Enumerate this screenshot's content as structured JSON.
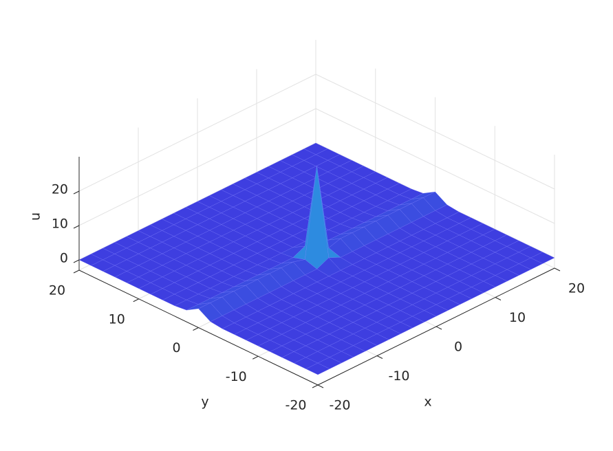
{
  "chart_data": {
    "type": "surface",
    "colormap": "parula",
    "grid": true,
    "xlabel": "x",
    "ylabel": "y",
    "zlabel": "u",
    "xlim": [
      -20,
      20
    ],
    "ylim": [
      -20,
      20
    ],
    "zlim": [
      -3,
      30
    ],
    "xticks": [
      -20,
      -10,
      0,
      10,
      20
    ],
    "yticks": [
      -20,
      -10,
      0,
      10,
      20
    ],
    "zticks": [
      0,
      10,
      20
    ],
    "x": [
      -20,
      -18,
      -16,
      -14,
      -12,
      -10,
      -8,
      -6,
      -4,
      -2,
      0,
      2,
      4,
      6,
      8,
      10,
      12,
      14,
      16,
      18,
      20
    ],
    "y": [
      -20,
      -18,
      -16,
      -14,
      -12,
      -10,
      -8,
      -6,
      -4,
      -2,
      0,
      2,
      4,
      6,
      8,
      10,
      12,
      14,
      16,
      18,
      20
    ],
    "z": [
      [
        0,
        0,
        0,
        0,
        0,
        0,
        0,
        0,
        0,
        0,
        0,
        0,
        0,
        0,
        0,
        0,
        0,
        0,
        0,
        0,
        0
      ],
      [
        0,
        0,
        0,
        0,
        0,
        0,
        0,
        0,
        0,
        0,
        0,
        0,
        0,
        0,
        0,
        0,
        0,
        0,
        0,
        0,
        0
      ],
      [
        0,
        0,
        0,
        0,
        0,
        0,
        0,
        0,
        0,
        0,
        0,
        0,
        0,
        0,
        0,
        0,
        0,
        0,
        0,
        0,
        0
      ],
      [
        0,
        0,
        0,
        0,
        0,
        0,
        0,
        0,
        0,
        0,
        0,
        0,
        0,
        0,
        0,
        0,
        0,
        0,
        0,
        0,
        0
      ],
      [
        0,
        0,
        0,
        0,
        0,
        0,
        0,
        0,
        0,
        0,
        0,
        0,
        0,
        0,
        0,
        0,
        0,
        0,
        0,
        0,
        0
      ],
      [
        0,
        0,
        0,
        0,
        0,
        0,
        0,
        0,
        0,
        0,
        0,
        0,
        0,
        0,
        0,
        0,
        0,
        0,
        0,
        0,
        0
      ],
      [
        0,
        0,
        0,
        0,
        0,
        0,
        0,
        0,
        0,
        0,
        0,
        0,
        0,
        0,
        0,
        0,
        0,
        0,
        0,
        0,
        0
      ],
      [
        0,
        0,
        0,
        0,
        0,
        0,
        0,
        0,
        0,
        0,
        0,
        0,
        0,
        0,
        0,
        0,
        0,
        0,
        0,
        0,
        0
      ],
      [
        0,
        0,
        0,
        0,
        0,
        0,
        0,
        0,
        0,
        0,
        0,
        0,
        0,
        0,
        0,
        0,
        0,
        0,
        0,
        0,
        0
      ],
      [
        0.4,
        0.4,
        0.4,
        0.4,
        0.4,
        0.4,
        0.4,
        0.4,
        0.4,
        0.4,
        2,
        0.4,
        0.4,
        0.4,
        0.4,
        0.4,
        0.4,
        0.4,
        0.4,
        0.4,
        0.4
      ],
      [
        2.5,
        2.5,
        2.5,
        2.5,
        2.5,
        2.5,
        2.5,
        2.5,
        2.5,
        1.5,
        27,
        1.5,
        2.5,
        2.5,
        2.5,
        2.5,
        2.5,
        2.5,
        2.5,
        2.5,
        2.5
      ],
      [
        0.4,
        0.4,
        0.4,
        0.4,
        0.4,
        0.4,
        0.4,
        0.4,
        0.4,
        0.4,
        2,
        0.4,
        0.4,
        0.4,
        0.4,
        0.4,
        0.4,
        0.4,
        0.4,
        0.4,
        0.4
      ],
      [
        0,
        0,
        0,
        0,
        0,
        0,
        0,
        0,
        0,
        0,
        0,
        0,
        0,
        0,
        0,
        0,
        0,
        0,
        0,
        0,
        0
      ],
      [
        0,
        0,
        0,
        0,
        0,
        0,
        0,
        0,
        0,
        0,
        0,
        0,
        0,
        0,
        0,
        0,
        0,
        0,
        0,
        0,
        0
      ],
      [
        0,
        0,
        0,
        0,
        0,
        0,
        0,
        0,
        0,
        0,
        0,
        0,
        0,
        0,
        0,
        0,
        0,
        0,
        0,
        0,
        0
      ],
      [
        0,
        0,
        0,
        0,
        0,
        0,
        0,
        0,
        0,
        0,
        0,
        0,
        0,
        0,
        0,
        0,
        0,
        0,
        0,
        0,
        0
      ],
      [
        0,
        0,
        0,
        0,
        0,
        0,
        0,
        0,
        0,
        0,
        0,
        0,
        0,
        0,
        0,
        0,
        0,
        0,
        0,
        0,
        0
      ],
      [
        0,
        0,
        0,
        0,
        0,
        0,
        0,
        0,
        0,
        0,
        0,
        0,
        0,
        0,
        0,
        0,
        0,
        0,
        0,
        0,
        0
      ],
      [
        0,
        0,
        0,
        0,
        0,
        0,
        0,
        0,
        0,
        0,
        0,
        0,
        0,
        0,
        0,
        0,
        0,
        0,
        0,
        0,
        0
      ],
      [
        0,
        0,
        0,
        0,
        0,
        0,
        0,
        0,
        0,
        0,
        0,
        0,
        0,
        0,
        0,
        0,
        0,
        0,
        0,
        0,
        0
      ],
      [
        0,
        0,
        0,
        0,
        0,
        0,
        0,
        0,
        0,
        0,
        0,
        0,
        0,
        0,
        0,
        0,
        0,
        0,
        0,
        0,
        0
      ]
    ]
  }
}
